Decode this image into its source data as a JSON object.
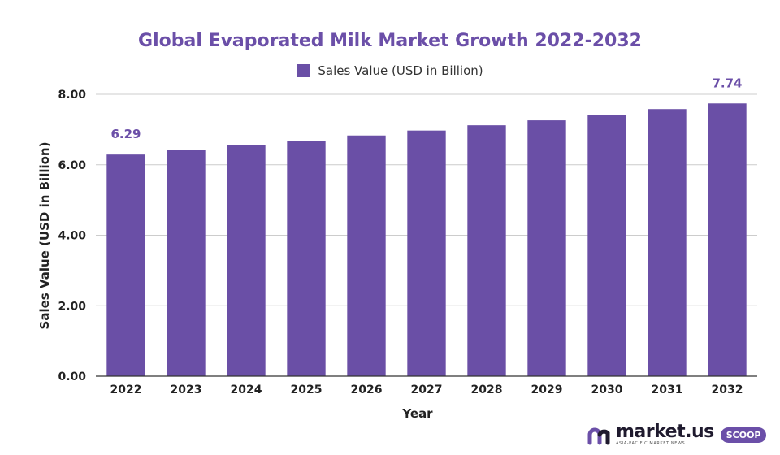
{
  "colors": {
    "bar": "#6a4fa6",
    "title": "#6b4fa8",
    "grid": "#cccccc",
    "axis": "#333333"
  },
  "chart_data": {
    "type": "bar",
    "title": "Global Evaporated Milk Market Growth 2022-2032",
    "xlabel": "Year",
    "ylabel": "Sales Value (USD in Billion)",
    "ylim": [
      0,
      8
    ],
    "yticks": [
      "0.00",
      "2.00",
      "4.00",
      "6.00",
      "8.00"
    ],
    "grid": true,
    "legend_position": "top-center",
    "categories": [
      "2022",
      "2023",
      "2024",
      "2025",
      "2026",
      "2027",
      "2028",
      "2029",
      "2030",
      "2031",
      "2032"
    ],
    "series": [
      {
        "name": "Sales Value (USD in Billion)",
        "values": [
          6.29,
          6.42,
          6.55,
          6.68,
          6.83,
          6.97,
          7.12,
          7.26,
          7.42,
          7.58,
          7.74
        ],
        "data_labels": [
          "6.29",
          null,
          null,
          null,
          null,
          null,
          null,
          null,
          null,
          null,
          "7.74"
        ]
      }
    ]
  },
  "logo": {
    "name": "market.us",
    "tagline": "ASIA-PACIFIC MARKET NEWS",
    "badge": "SCOOP"
  }
}
